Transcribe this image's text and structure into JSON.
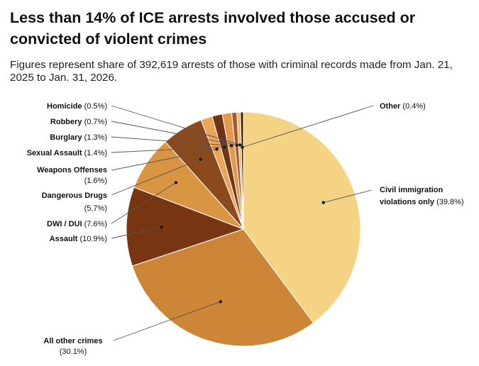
{
  "header": {
    "title": "Less than 14% of ICE arrests involved those accused or convicted of violent crimes",
    "subtitle": "Figures represent share of 392,619 arrests of those with criminal records made from Jan. 21, 2025 to Jan. 31, 2026."
  },
  "chart_data": {
    "type": "pie",
    "title": "Less than 14% of ICE arrests involved those accused or convicted of violent crimes",
    "subtitle": "Figures represent share of 392,619 arrests of those with criminal records made from Jan. 21, 2025 to Jan. 31, 2026.",
    "start_angle_deg": 0,
    "direction": "clockwise",
    "slices": [
      {
        "name": "Civil immigration violations only",
        "value": 39.8,
        "value_label": "(39.8%)",
        "color": "#F5D385"
      },
      {
        "name": "All other crimes",
        "value": 30.1,
        "value_label": "(30.1%)",
        "color": "#CD8538"
      },
      {
        "name": "Assault",
        "value": 10.9,
        "value_label": "(10.9%)",
        "color": "#773512"
      },
      {
        "name": "DWI / DUI",
        "value": 7.6,
        "value_label": "(7.6%)",
        "color": "#DA9543"
      },
      {
        "name": "Dangerous Drugs",
        "value": 5.7,
        "value_label": "(5.7%)",
        "color": "#8B4A1C"
      },
      {
        "name": "Weapons Offenses",
        "value": 1.6,
        "value_label": "(1.6%)",
        "color": "#ECA35A"
      },
      {
        "name": "Sexual Assault",
        "value": 1.4,
        "value_label": "(1.4%)",
        "color": "#6F3514"
      },
      {
        "name": "Burglary",
        "value": 1.3,
        "value_label": "(1.3%)",
        "color": "#E39A4E"
      },
      {
        "name": "Robbery",
        "value": 0.7,
        "value_label": "(0.7%)",
        "color": "#A55C28"
      },
      {
        "name": "Homicide",
        "value": 0.5,
        "value_label": "(0.5%)",
        "color": "#F3B978"
      },
      {
        "name": "Other",
        "value": 0.4,
        "value_label": "(0.4%)",
        "color": "#3A1C0A"
      }
    ]
  }
}
